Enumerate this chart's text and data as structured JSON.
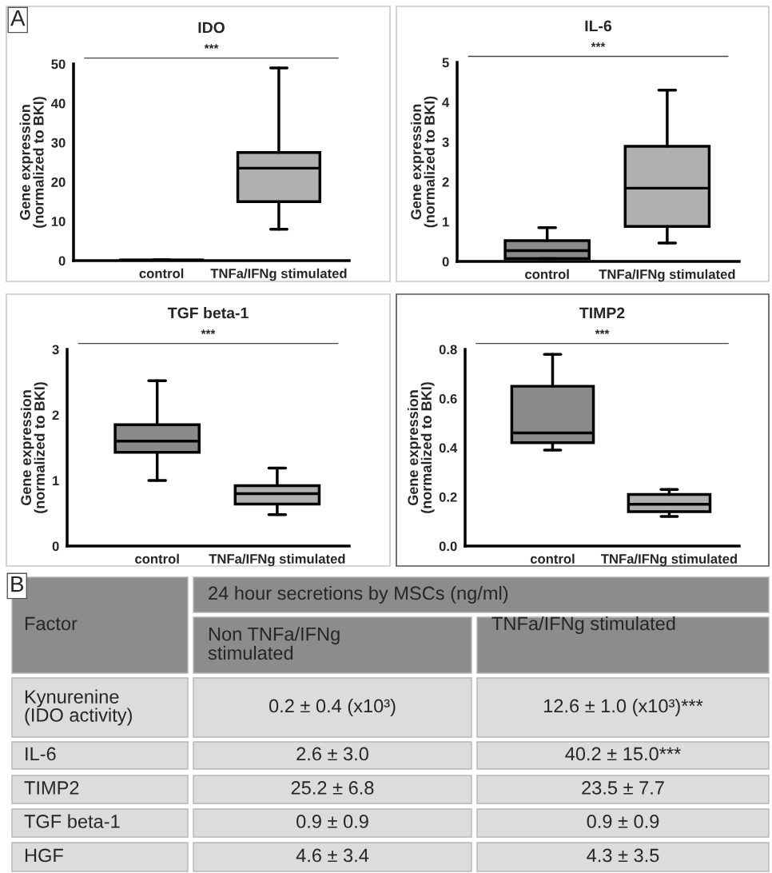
{
  "chart_data": [
    {
      "type": "box",
      "title": "IDO",
      "ylabel": "Gene expression\n(normalized to BKI)",
      "categories": [
        "control",
        "TNFa/IFNg stimulated"
      ],
      "colors": [
        "#8a8a8a",
        "#b0b0b0"
      ],
      "boxes": [
        {
          "low": 0,
          "q1": 0.05,
          "median": 0.1,
          "q3": 0.15,
          "high": 0.2
        },
        {
          "low": 8,
          "q1": 15,
          "median": 23.5,
          "q3": 27.5,
          "high": 49
        }
      ],
      "ylim": [
        0,
        50
      ],
      "yticks": [
        0,
        10,
        20,
        30,
        40,
        50
      ],
      "annotations": [
        "A",
        "***"
      ]
    },
    {
      "type": "box",
      "title": "IL-6",
      "ylabel": "Gene expression\n(normalized to BKI)",
      "categories": [
        "control",
        "TNFa/IFNg stimulated"
      ],
      "colors": [
        "#8a8a8a",
        "#b0b0b0"
      ],
      "boxes": [
        {
          "low": 0.07,
          "q1": 0.07,
          "median": 0.27,
          "q3": 0.52,
          "high": 0.85
        },
        {
          "low": 0.46,
          "q1": 0.88,
          "median": 1.84,
          "q3": 2.89,
          "high": 4.3
        }
      ],
      "ylim": [
        0,
        5
      ],
      "yticks": [
        0,
        1,
        2,
        3,
        4,
        5
      ],
      "annotations": [
        "***"
      ]
    },
    {
      "type": "box",
      "title": "TGF beta-1",
      "ylabel": "Gene expression\n(normalized to BKI)",
      "categories": [
        "control",
        "TNFa/IFNg stimulated"
      ],
      "colors": [
        "#8a8a8a",
        "#b0b0b0"
      ],
      "boxes": [
        {
          "low": 1.0,
          "q1": 1.43,
          "median": 1.6,
          "q3": 1.85,
          "high": 2.52
        },
        {
          "low": 0.48,
          "q1": 0.64,
          "median": 0.8,
          "q3": 0.92,
          "high": 1.19
        }
      ],
      "ylim": [
        0,
        3
      ],
      "yticks": [
        0,
        1,
        2,
        3
      ],
      "annotations": [
        "***"
      ]
    },
    {
      "type": "box",
      "title": "TIMP2",
      "ylabel": "Gene expression\n(normalized to BKI)",
      "categories": [
        "control",
        "TNFa/IFNg stimulated"
      ],
      "colors": [
        "#8a8a8a",
        "#b0b0b0"
      ],
      "boxes": [
        {
          "low": 0.39,
          "q1": 0.42,
          "median": 0.46,
          "q3": 0.65,
          "high": 0.78
        },
        {
          "low": 0.12,
          "q1": 0.14,
          "median": 0.17,
          "q3": 0.21,
          "high": 0.23
        }
      ],
      "ylim": [
        0,
        0.8
      ],
      "yticks": [
        {
          "value": 0,
          "label": "0.0"
        },
        0.2,
        0.4,
        0.6,
        0.8
      ],
      "annotations": [
        "***"
      ]
    },
    {
      "type": "other",
      "annotations": [
        "B",
        "Factor",
        "24 hour secretions by MSCs (ng/ml)",
        "Non TNFa/IFNg\nstimulated",
        "TNFa/IFNg stimulated",
        "Kynurenine\n(IDO activity)",
        "0.2 ± 0.4 (x10³)",
        "12.6 ± 1.0 (x10³)***",
        "IL-6",
        "2.6 ± 3.0",
        "40.2 ± 15.0***",
        "TIMP2",
        "25.2 ± 6.8",
        "23.5 ± 7.7",
        "TGF beta-1",
        "0.9 ± 0.9",
        "0.9 ± 0.9",
        "HGF",
        "4.6 ± 3.4",
        "4.3 ± 3.5"
      ]
    }
  ]
}
